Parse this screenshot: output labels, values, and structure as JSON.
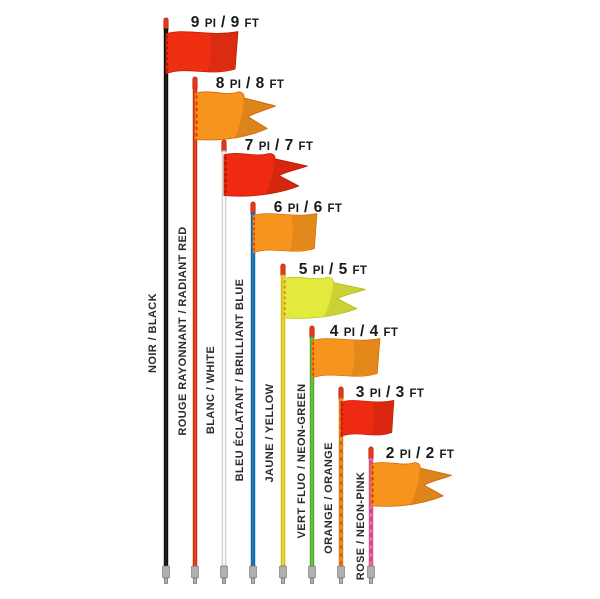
{
  "flags": [
    {
      "size_label": "9 PI / 9 FT",
      "color_label": "NOIR / BLACK",
      "shape": "rectangle",
      "flag_color": "#ee2f12",
      "flag_shade": "#c01c02",
      "stitch_color": "#a81200",
      "pole_color": "#1d1d1d",
      "pole_outline": "#000000"
    },
    {
      "size_label": "8 PI / 8 FT",
      "color_label": "ROUGE RAYONNANT / RADIANT RED",
      "shape": "swallowtail",
      "flag_color": "#f7941d",
      "flag_shade": "#d96c08",
      "stitch_color": "#e03000",
      "pole_color": "#e8401e",
      "pole_outline": "#b92406"
    },
    {
      "size_label": "7 PI / 7 FT",
      "color_label": "BLANC / WHITE",
      "shape": "swallowtail",
      "flag_color": "#ee2b12",
      "flag_shade": "#c01c02",
      "stitch_color": "#a81200",
      "pole_color": "#fafafa",
      "pole_outline": "#b5b5b5"
    },
    {
      "size_label": "6 PI / 6 FT",
      "color_label": "BLEU ÉCLATANT / BRILLIANT BLUE",
      "shape": "rectangle",
      "flag_color": "#f7941d",
      "flag_shade": "#d96c08",
      "stitch_color": "#e03000",
      "pole_color": "#1a79bd",
      "pole_outline": "#0c5a94"
    },
    {
      "size_label": "5 PI / 5 FT",
      "color_label": "JAUNE / YELLOW",
      "shape": "swallowtail",
      "flag_color": "#e3ea3d",
      "flag_shade": "#bcc916",
      "stitch_color": "#f08020",
      "pole_color": "#f0d42a",
      "pole_outline": "#c5a714"
    },
    {
      "size_label": "4 PI / 4 FT",
      "color_label": "VERT FLUO / NEON-GREEN",
      "shape": "rectangle",
      "flag_color": "#f7941d",
      "flag_shade": "#d96c08",
      "stitch_color": "#e03000",
      "pole_color": "#64c23e",
      "pole_outline": "#3e9c20"
    },
    {
      "size_label": "3 PI / 3 FT",
      "color_label": "ORANGE / ORANGE",
      "shape": "rectangle",
      "flag_color": "#ee2b12",
      "flag_shade": "#c01c02",
      "stitch_color": "#a81200",
      "pole_color": "#f6921e",
      "pole_outline": "#cc6c0a",
      "pole_dash": "#d9480f"
    },
    {
      "size_label": "2 PI / 2 FT",
      "color_label": "ROSE / NEON-PINK",
      "shape": "swallowtail",
      "flag_color": "#f7941d",
      "flag_shade": "#d96c08",
      "stitch_color": "#e03000",
      "pole_color": "#ef6ba9",
      "pole_outline": "#cc4286",
      "pole_dash": "#c43a6e"
    }
  ],
  "hardware": {
    "tip_color": "#e23a1b",
    "tip_outline": "#b42505",
    "ferrule_color": "#b0b0b0",
    "ferrule_outline": "#707070"
  }
}
